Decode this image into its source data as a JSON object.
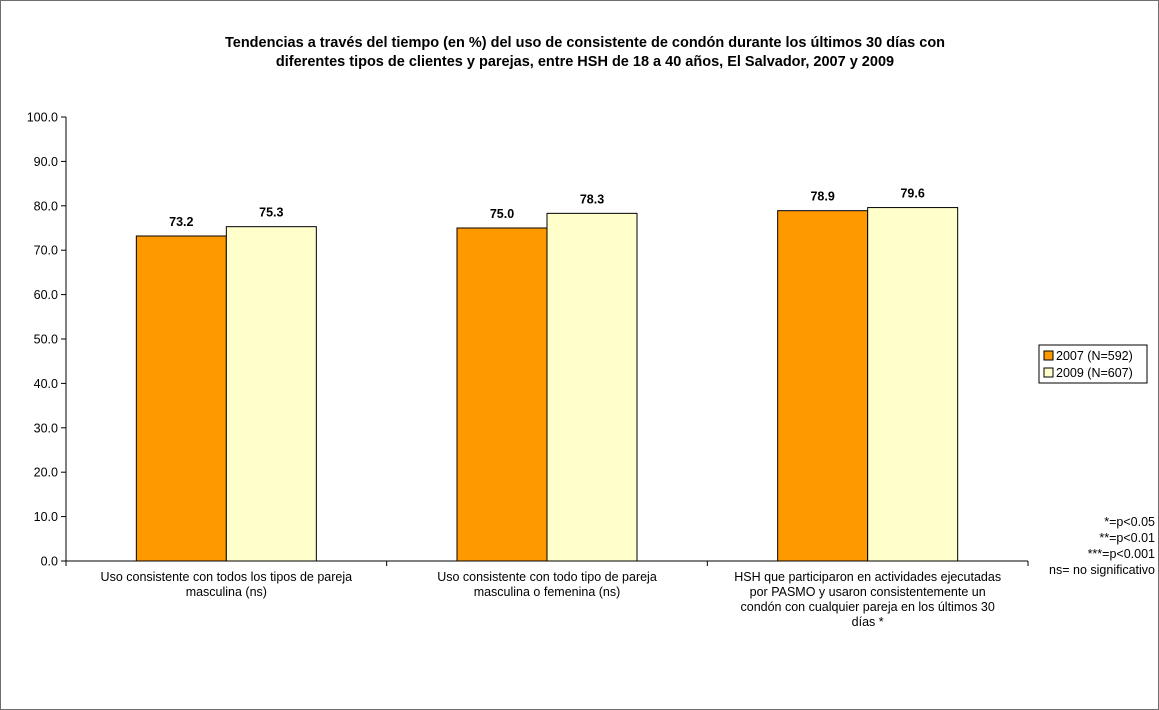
{
  "chart_data": {
    "type": "bar",
    "title_lines": [
      "Tendencias a través del tiempo (en %) del uso de consistente de condón durante los últimos 30 días con",
      "diferentes tipos de clientes y parejas, entre HSH de 18 a 40 años, El Salvador, 2007 y 2009"
    ],
    "categories": [
      [
        "Uso consistente con todos los tipos de pareja",
        "masculina (ns)"
      ],
      [
        "Uso consistente con todo tipo de pareja",
        "masculina o femenina (ns)"
      ],
      [
        "HSH que participaron en actividades ejecutadas",
        "por PASMO y usaron consistentemente un",
        "condón con cualquier pareja en los últimos 30",
        "días *"
      ]
    ],
    "series": [
      {
        "name": "2007 (N=592)",
        "color": "#ff9900",
        "values": [
          73.2,
          75.0,
          78.9
        ],
        "labels": [
          "73.2",
          "75.0",
          "78.9"
        ]
      },
      {
        "name": "2009 (N=607)",
        "color": "#ffffcc",
        "values": [
          75.3,
          78.3,
          79.6
        ],
        "labels": [
          "75.3",
          "78.3",
          "79.6"
        ]
      }
    ],
    "ylim": [
      0,
      100
    ],
    "yticks": [
      "0.0",
      "10.0",
      "20.0",
      "30.0",
      "40.0",
      "50.0",
      "60.0",
      "70.0",
      "80.0",
      "90.0",
      "100.0"
    ],
    "ytick_step": 10,
    "grid": false,
    "legend_position": "right",
    "notes": [
      "*=p<0.05",
      "**=p<0.01",
      "***=p<0.001",
      "ns= no significativo"
    ]
  }
}
